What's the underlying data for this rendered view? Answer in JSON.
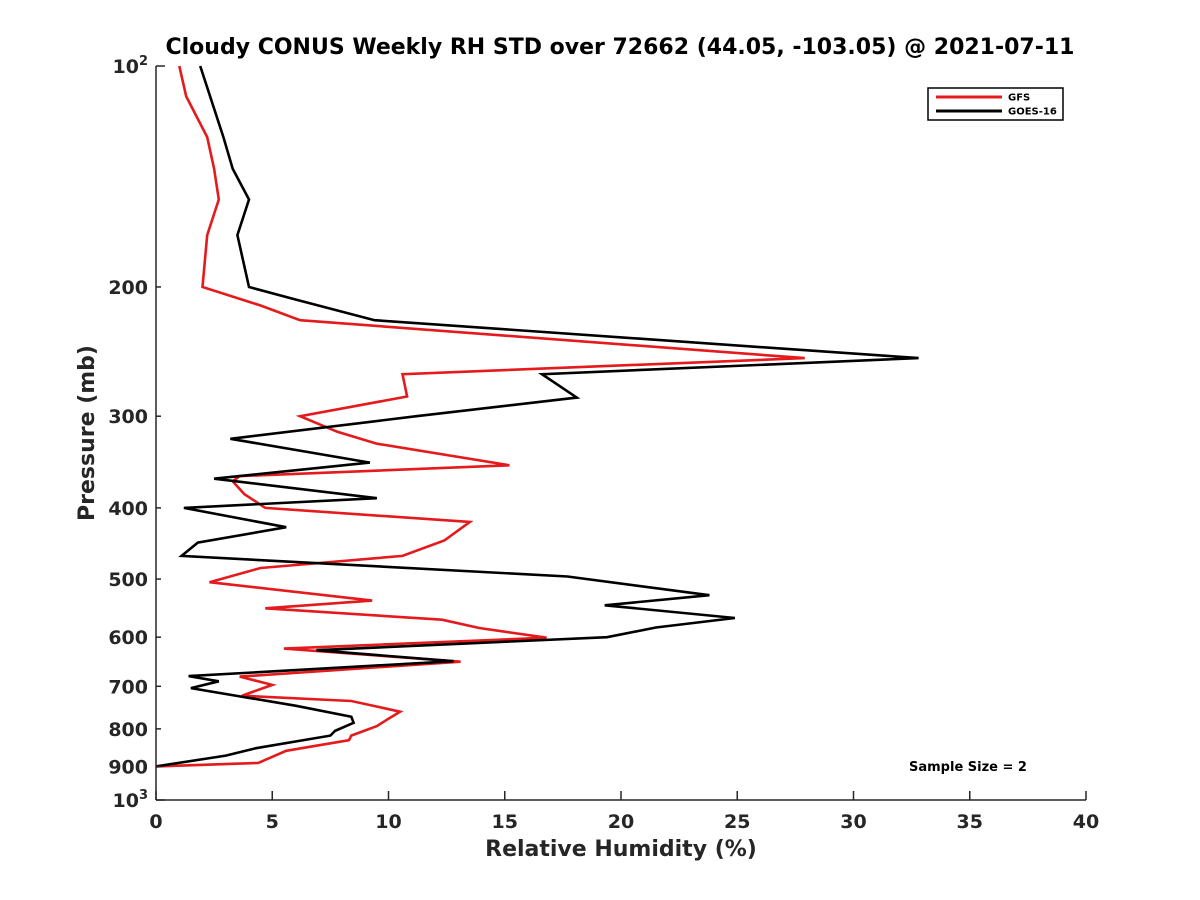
{
  "chart_data": {
    "type": "line",
    "title": "Cloudy CONUS Weekly RH STD over 72662 (44.05, -103.05) @ 2021-07-11",
    "xlabel": "Relative Humidity (%)",
    "ylabel": "Pressure (mb)",
    "xlim": [
      0,
      40
    ],
    "ylim": [
      100,
      1000
    ],
    "y_scale": "log",
    "y_reversed": true,
    "x_ticks": [
      0,
      5,
      10,
      15,
      20,
      25,
      30,
      35,
      40
    ],
    "x_tick_labels": [
      "0",
      "5",
      "10",
      "15",
      "20",
      "25",
      "30",
      "35",
      "40"
    ],
    "y_ticks": [
      200,
      300,
      400,
      500,
      600,
      700,
      800,
      900
    ],
    "y_tick_labels": [
      "200",
      "300",
      "400",
      "500",
      "600",
      "700",
      "800",
      "900"
    ],
    "y_top_label": {
      "base": "10",
      "exp": "2"
    },
    "y_bottom_label": {
      "base": "10",
      "exp": "3"
    },
    "grid": false,
    "legend": "top-right",
    "annotation": "Sample Size = 2",
    "series": [
      {
        "name": "GFS",
        "color": "#e41a1c",
        "points": [
          [
            1.0,
            100
          ],
          [
            1.3,
            110
          ],
          [
            2.2,
            125
          ],
          [
            2.5,
            138
          ],
          [
            2.7,
            152
          ],
          [
            2.2,
            170
          ],
          [
            2.0,
            200
          ],
          [
            4.5,
            212
          ],
          [
            6.2,
            222
          ],
          [
            27.9,
            250
          ],
          [
            10.6,
            263
          ],
          [
            10.8,
            282
          ],
          [
            6.2,
            300
          ],
          [
            7.8,
            315
          ],
          [
            9.5,
            327
          ],
          [
            15.2,
            350
          ],
          [
            3.6,
            362
          ],
          [
            3.3,
            368
          ],
          [
            3.8,
            383
          ],
          [
            4.7,
            400
          ],
          [
            13.5,
            418
          ],
          [
            12.4,
            443
          ],
          [
            10.6,
            465
          ],
          [
            4.5,
            483
          ],
          [
            2.3,
            505
          ],
          [
            9.3,
            535
          ],
          [
            4.7,
            548
          ],
          [
            12.3,
            568
          ],
          [
            13.9,
            583
          ],
          [
            16.8,
            601
          ],
          [
            5.5,
            622
          ],
          [
            13.1,
            648
          ],
          [
            3.6,
            679
          ],
          [
            5.0,
            697
          ],
          [
            3.7,
            721
          ],
          [
            8.4,
            733
          ],
          [
            10.5,
            758
          ],
          [
            10.0,
            775
          ],
          [
            9.5,
            793
          ],
          [
            8.4,
            817
          ],
          [
            8.3,
            829
          ],
          [
            5.6,
            857
          ],
          [
            4.4,
            890
          ],
          [
            0.0,
            900
          ]
        ]
      },
      {
        "name": "GOES-16",
        "color": "#000000",
        "points": [
          [
            1.9,
            100
          ],
          [
            2.9,
            125
          ],
          [
            3.3,
            138
          ],
          [
            4.0,
            152
          ],
          [
            3.5,
            170
          ],
          [
            4.0,
            200
          ],
          [
            6.0,
            208
          ],
          [
            9.4,
            222
          ],
          [
            32.8,
            250
          ],
          [
            16.6,
            263
          ],
          [
            18.1,
            283
          ],
          [
            11.2,
            300
          ],
          [
            3.2,
            322
          ],
          [
            9.2,
            347
          ],
          [
            2.5,
            365
          ],
          [
            9.5,
            388
          ],
          [
            1.2,
            400
          ],
          [
            5.6,
            425
          ],
          [
            1.8,
            446
          ],
          [
            1.1,
            465
          ],
          [
            17.7,
            496
          ],
          [
            23.8,
            526
          ],
          [
            19.3,
            543
          ],
          [
            24.9,
            565
          ],
          [
            21.5,
            582
          ],
          [
            19.4,
            600
          ],
          [
            6.9,
            625
          ],
          [
            12.8,
            647
          ],
          [
            1.4,
            678
          ],
          [
            2.7,
            689
          ],
          [
            1.5,
            704
          ],
          [
            6.0,
            744
          ],
          [
            8.4,
            770
          ],
          [
            8.5,
            785
          ],
          [
            7.7,
            805
          ],
          [
            7.5,
            817
          ],
          [
            4.3,
            850
          ],
          [
            3.0,
            870
          ],
          [
            0.0,
            900
          ]
        ]
      }
    ]
  }
}
